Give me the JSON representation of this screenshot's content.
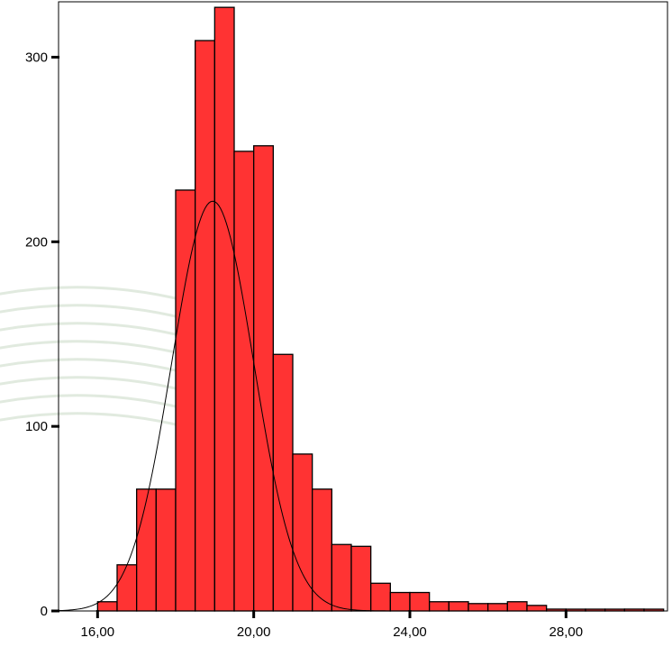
{
  "chart_data": {
    "type": "bar",
    "subtype": "histogram",
    "bin_width": 0.5,
    "bins_start": [
      16.0,
      16.5,
      17.0,
      17.5,
      18.0,
      18.5,
      19.0,
      19.5,
      20.0,
      20.5,
      21.0,
      21.5,
      22.0,
      22.5,
      23.0,
      23.5,
      24.0,
      24.5,
      25.0,
      25.5,
      26.0,
      26.5,
      27.0,
      27.5,
      28.0,
      28.5,
      29.0,
      29.5,
      30.0
    ],
    "values": [
      5,
      25,
      66,
      66,
      228,
      309,
      327,
      249,
      252,
      139,
      85,
      66,
      36,
      35,
      15,
      10,
      10,
      5,
      5,
      4,
      4,
      5,
      3,
      1,
      0,
      0,
      0,
      1,
      0
    ],
    "normal_curve": {
      "mean": 18.95,
      "sd": 1.05,
      "peak": 222
    },
    "xlim": [
      15.0,
      30.6
    ],
    "ylim": [
      0,
      330
    ],
    "x_ticks": [
      "16,00",
      "20,00",
      "24,00",
      "28,00"
    ],
    "x_tick_values": [
      16,
      20,
      24,
      28
    ],
    "y_ticks": [
      "0",
      "100",
      "200",
      "300"
    ],
    "y_tick_values": [
      0,
      100,
      200,
      300
    ],
    "title": "",
    "xlabel": "",
    "ylabel": "",
    "bar_color": "#ff3333",
    "bar_edge_color": "#000000",
    "curve_color": "#000000",
    "grid": false
  }
}
